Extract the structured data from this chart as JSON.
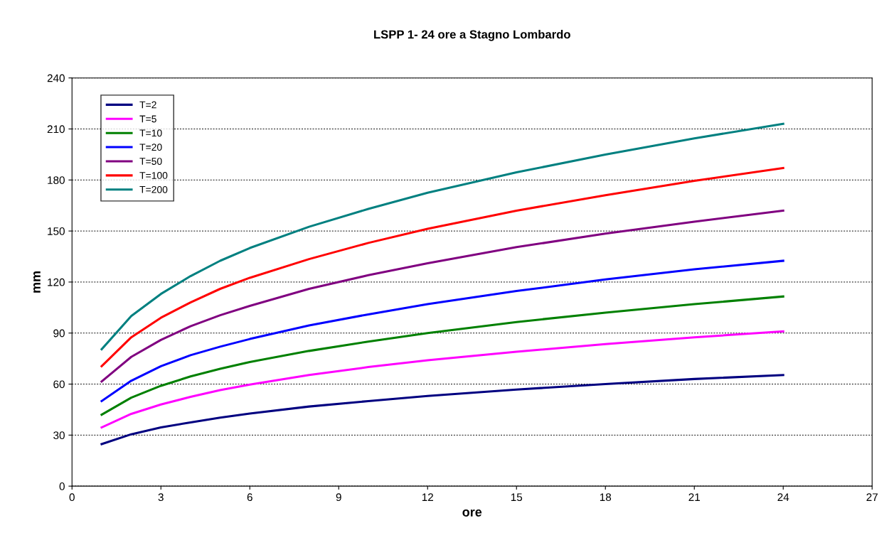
{
  "chart_data": {
    "type": "line",
    "title": "LSPP 1- 24 ore a Stagno Lombardo",
    "xlabel": "ore",
    "ylabel": "mm",
    "x": [
      1,
      2,
      3,
      4,
      5,
      6,
      8,
      10,
      12,
      15,
      18,
      21,
      24
    ],
    "xlim": [
      0,
      27
    ],
    "xticks": [
      0,
      3,
      6,
      9,
      12,
      15,
      18,
      21,
      24,
      27
    ],
    "ylim": [
      0,
      240
    ],
    "yticks": [
      0,
      30,
      60,
      90,
      120,
      150,
      180,
      210,
      240
    ],
    "grid": "y",
    "legend": "top left",
    "marker": "none",
    "line_style": "solid",
    "series": [
      {
        "name": "T=2",
        "color": "#000080",
        "values": [
          24.7,
          30.5,
          34.5,
          37.5,
          40.3,
          42.7,
          46.8,
          50,
          53,
          56.8,
          60,
          63,
          65.3
        ]
      },
      {
        "name": "T=5",
        "color": "#ff00ff",
        "values": [
          34.5,
          42.5,
          48,
          52.5,
          56.5,
          59.7,
          65.3,
          70,
          74,
          79,
          83.5,
          87.5,
          91
        ]
      },
      {
        "name": "T=10",
        "color": "#008000",
        "values": [
          42,
          52,
          59,
          64.5,
          69,
          73,
          79.5,
          85,
          90,
          96.5,
          102,
          107,
          111.5
        ]
      },
      {
        "name": "T=20",
        "color": "#0000ff",
        "values": [
          50,
          62,
          70.5,
          77,
          82,
          86.5,
          94.5,
          101,
          107,
          114.7,
          121.5,
          127.5,
          132.5
        ]
      },
      {
        "name": "T=50",
        "color": "#800080",
        "values": [
          61.5,
          76,
          86,
          94,
          100.5,
          106,
          116,
          124,
          131,
          140.5,
          148.5,
          155.5,
          162
        ]
      },
      {
        "name": "T=100",
        "color": "#ff0000",
        "values": [
          70.5,
          87.5,
          99,
          108,
          116,
          122.5,
          133.5,
          143,
          151.3,
          162,
          171,
          179.5,
          187
        ]
      },
      {
        "name": "T=200",
        "color": "#008080",
        "values": [
          80.5,
          100,
          113,
          123.5,
          132.5,
          140,
          152.5,
          163,
          172.5,
          184.5,
          195,
          204.5,
          213
        ]
      }
    ]
  }
}
